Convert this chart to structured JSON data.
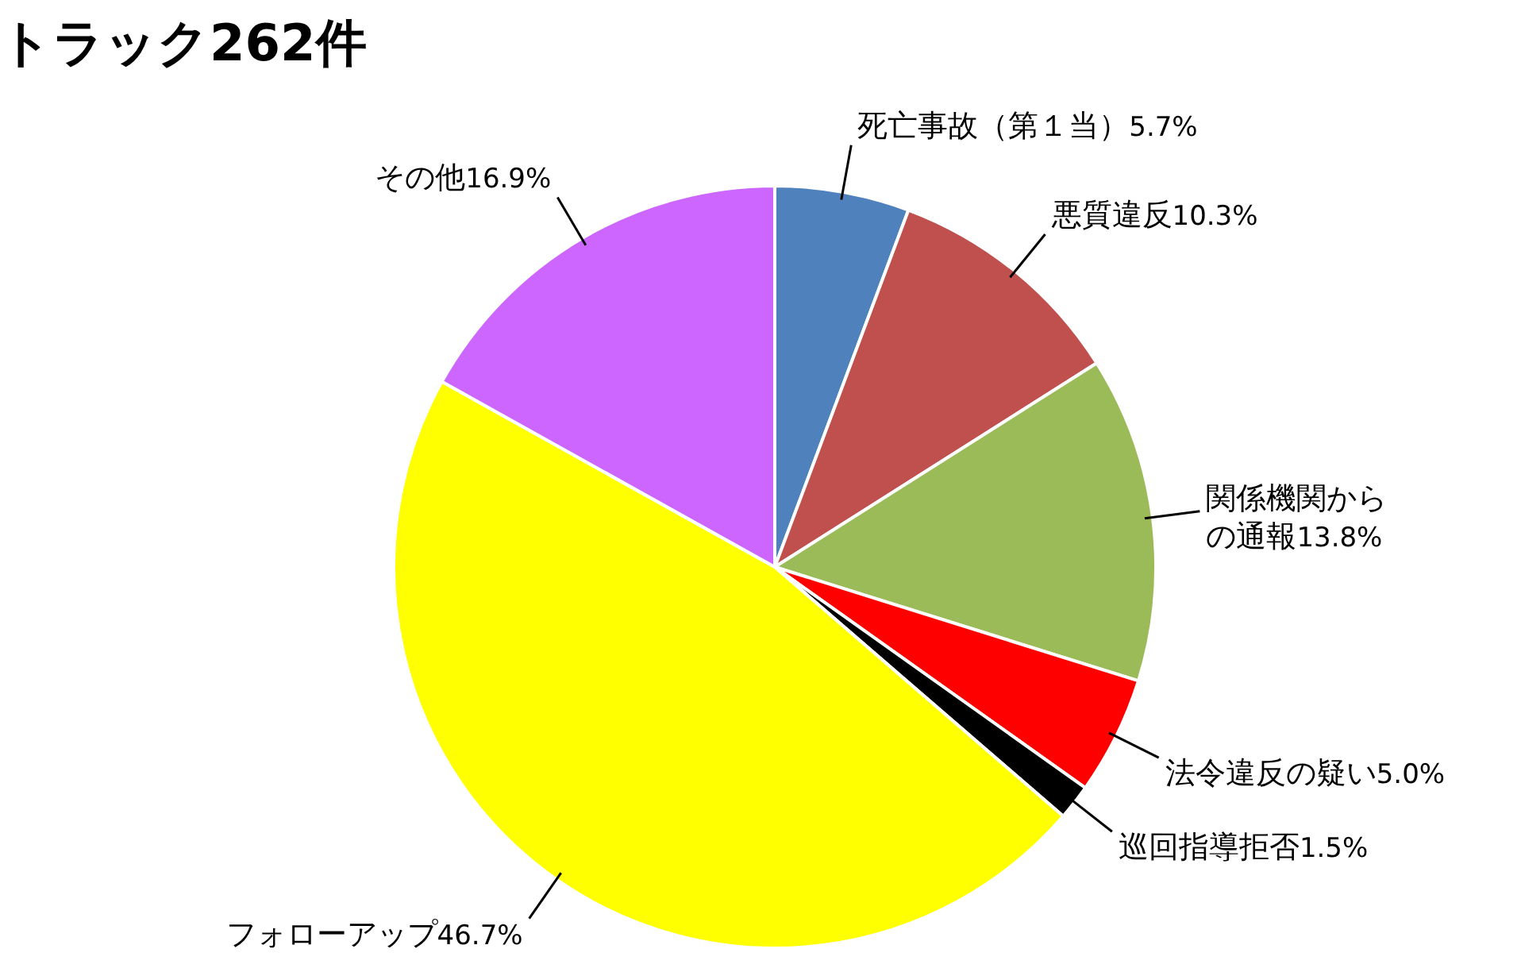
{
  "chart_data": {
    "type": "pie",
    "title": "トラック262件",
    "categories": [
      "死亡事故（第１当）",
      "悪質違反",
      "関係機関からの通報",
      "法令違反の疑い",
      "巡回指導拒否",
      "フォローアップ",
      "その他"
    ],
    "values": [
      5.7,
      10.3,
      13.8,
      5.0,
      1.5,
      46.7,
      16.9
    ],
    "value_labels": [
      "5.7%",
      "10.3%",
      "13.8%",
      "5.0%",
      "1.5%",
      "46.7%",
      "16.9%"
    ],
    "colors": [
      "#4f81bd",
      "#c0504d",
      "#9bbb59",
      "#ff0000",
      "#000000",
      "#ffff00",
      "#cc66ff"
    ]
  }
}
